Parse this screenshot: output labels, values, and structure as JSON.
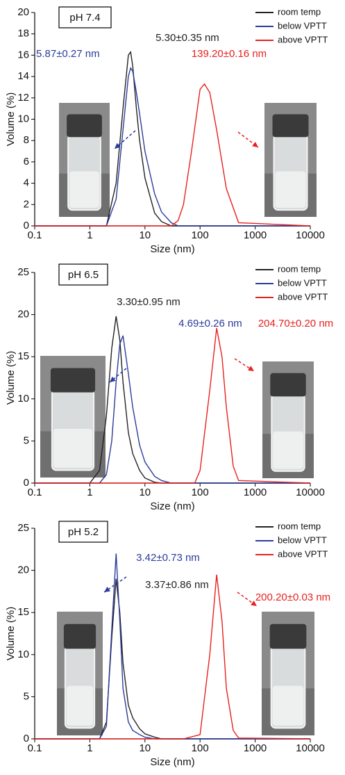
{
  "chart_data": [
    {
      "type": "line",
      "xlabel": "Size (nm)",
      "ylabel": "Volume (%)",
      "panel_label": "pH 7.4",
      "xscale": "log",
      "xlim": [
        0.1,
        10000
      ],
      "xticks": [
        0.1,
        1,
        10,
        100,
        1000,
        10000
      ],
      "ylim": [
        0,
        20
      ],
      "yticks": [
        0,
        2,
        4,
        6,
        8,
        10,
        12,
        14,
        16,
        18,
        20
      ],
      "legend": "upper right",
      "x": [
        0.1,
        2,
        3,
        4,
        5,
        5.5,
        6,
        7,
        8,
        10,
        15,
        20,
        30,
        40,
        50,
        70,
        100,
        120,
        150,
        200,
        300,
        500,
        10000
      ],
      "series": [
        {
          "name": "room temp",
          "color": "#222222",
          "values": [
            0,
            0,
            4,
            11,
            16,
            16.3,
            15,
            11,
            8,
            4.5,
            1.2,
            0.4,
            0,
            0,
            0,
            0,
            0,
            0,
            0,
            0,
            0,
            0,
            0
          ]
        },
        {
          "name": "below VPTT",
          "color": "#2b3b9a",
          "values": [
            0,
            0,
            2.5,
            9,
            14,
            14.8,
            14.5,
            12.5,
            10.5,
            7,
            3,
            1.3,
            0.3,
            0,
            0,
            0,
            0,
            0,
            0,
            0,
            0,
            0,
            0
          ]
        },
        {
          "name": "above VPTT",
          "color": "#e8201e",
          "values": [
            0,
            0,
            0,
            0,
            0,
            0,
            0,
            0,
            0,
            0,
            0,
            0,
            0,
            0.5,
            2,
            7,
            12.8,
            13.3,
            12.5,
            9,
            3.5,
            0.3,
            0
          ]
        }
      ],
      "annotations": [
        {
          "text": "5.30±0.35 nm",
          "color": "#222222"
        },
        {
          "text": "5.87±0.27 nm",
          "color": "#2b3b9a"
        },
        {
          "text": "139.20±0.16 nm",
          "color": "#e8201e"
        }
      ]
    },
    {
      "type": "line",
      "xlabel": "Size (nm)",
      "ylabel": "Volume (%)",
      "panel_label": "pH 6.5",
      "xscale": "log",
      "xlim": [
        0.1,
        10000
      ],
      "xticks": [
        0.1,
        1,
        10,
        100,
        1000,
        10000
      ],
      "ylim": [
        0,
        25
      ],
      "yticks": [
        0,
        5,
        10,
        15,
        20,
        25
      ],
      "legend": "upper right",
      "x": [
        0.1,
        1,
        1.5,
        2,
        2.5,
        3,
        3.5,
        4,
        5,
        6,
        8,
        10,
        15,
        20,
        30,
        50,
        80,
        100,
        150,
        200,
        250,
        300,
        400,
        500,
        10000
      ],
      "series": [
        {
          "name": "room temp",
          "color": "#222222",
          "values": [
            0,
            0,
            1.5,
            8,
            16,
            19.8,
            17,
            12,
            6,
            3.5,
            1.5,
            0.6,
            0.1,
            0,
            0,
            0,
            0,
            0,
            0,
            0,
            0,
            0,
            0,
            0,
            0
          ]
        },
        {
          "name": "below VPTT",
          "color": "#2b3b9a",
          "values": [
            0,
            0,
            0,
            1,
            5,
            12,
            16.5,
            17.5,
            13,
            9,
            4.5,
            2.5,
            0.8,
            0.3,
            0,
            0,
            0,
            0,
            0,
            0,
            0,
            0,
            0,
            0,
            0
          ]
        },
        {
          "name": "above VPTT",
          "color": "#e8201e",
          "values": [
            0,
            0,
            0,
            0,
            0,
            0,
            0,
            0,
            0,
            0,
            0,
            0,
            0,
            0,
            0,
            0,
            0,
            1.5,
            11,
            18.4,
            15,
            9,
            2,
            0.3,
            0
          ]
        }
      ],
      "annotations": [
        {
          "text": "3.30±0.95 nm",
          "color": "#222222"
        },
        {
          "text": "4.69±0.26 nm",
          "color": "#2b3b9a"
        },
        {
          "text": "204.70±0.20 nm",
          "color": "#e8201e"
        }
      ]
    },
    {
      "type": "line",
      "xlabel": "Size (nm)",
      "ylabel": "Volume (%)",
      "panel_label": "pH 5.2",
      "xscale": "log",
      "xlim": [
        0.1,
        10000
      ],
      "xticks": [
        0.1,
        1,
        10,
        100,
        1000,
        10000
      ],
      "ylim": [
        0,
        25
      ],
      "yticks": [
        0,
        5,
        10,
        15,
        20,
        25
      ],
      "legend": "upper right",
      "x": [
        0.1,
        1,
        1.5,
        2,
        2.5,
        3,
        3.5,
        4,
        5,
        6,
        8,
        10,
        15,
        20,
        50,
        100,
        150,
        200,
        250,
        300,
        400,
        500,
        10000
      ],
      "series": [
        {
          "name": "room temp",
          "color": "#222222",
          "values": [
            0,
            0,
            0,
            2,
            12,
            19,
            15,
            9,
            4,
            2.5,
            1.2,
            0.6,
            0.2,
            0,
            0,
            0,
            0,
            0,
            0,
            0,
            0,
            0,
            0
          ]
        },
        {
          "name": "below VPTT",
          "color": "#2b3b9a",
          "values": [
            0,
            0,
            0,
            1.5,
            13,
            22,
            14,
            6,
            2,
            1,
            0.5,
            0.2,
            0,
            0,
            0,
            0,
            0,
            0,
            0,
            0,
            0,
            0,
            0
          ]
        },
        {
          "name": "above VPTT",
          "color": "#e8201e",
          "values": [
            0,
            0,
            0,
            0,
            0,
            0,
            0,
            0,
            0,
            0,
            0,
            0,
            0,
            0,
            0,
            0.5,
            10,
            19.5,
            14,
            6,
            1,
            0.1,
            0
          ]
        }
      ],
      "annotations": [
        {
          "text": "3.42±0.73 nm",
          "color": "#2b3b9a"
        },
        {
          "text": "3.37±0.86 nm",
          "color": "#222222"
        },
        {
          "text": "200.20±0.03 nm",
          "color": "#e8201e"
        }
      ]
    }
  ]
}
